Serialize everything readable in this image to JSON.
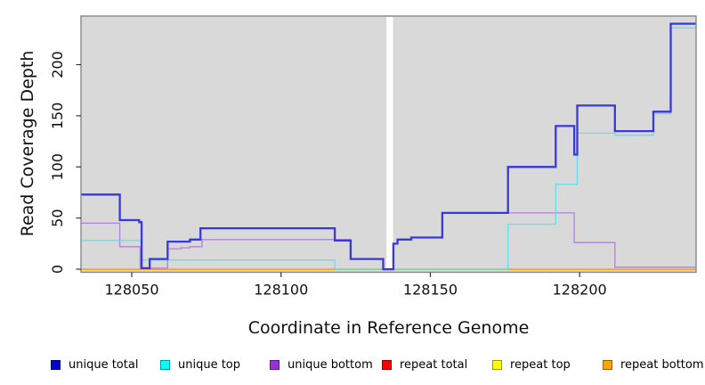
{
  "chart_data": {
    "type": "line",
    "subtype": "step-after-coverage",
    "title": "",
    "xlabel": "Coordinate in Reference Genome",
    "ylabel": "Read Coverage Depth",
    "xlim": [
      128033,
      128239
    ],
    "ylim": [
      -3,
      247.5
    ],
    "xticks": [
      128050,
      128100,
      128150,
      128200
    ],
    "yticks": [
      0,
      50,
      100,
      150,
      200
    ],
    "grid": false,
    "plot_bg": "#d9d9d9",
    "box_border": "#878787",
    "tick_color": "#333333",
    "text_color": "#111111",
    "gap_region": {
      "x_start": 128135.3,
      "x_end": 128137.5,
      "color": "#ffffff"
    },
    "series": [
      {
        "name": "repeat total",
        "color": "#e60000",
        "width": 1.3,
        "opacity": 1,
        "points": [
          [
            128033,
            0
          ],
          [
            128239,
            0
          ]
        ]
      },
      {
        "name": "repeat top",
        "color": "#ffff00",
        "width": 1.3,
        "opacity": 1,
        "points": [
          [
            128033,
            0
          ],
          [
            128239,
            0
          ]
        ]
      },
      {
        "name": "repeat bottom",
        "color": "#ffa01e",
        "width": 1.5,
        "opacity": 1,
        "points": [
          [
            128033,
            0
          ],
          [
            128239,
            0
          ]
        ]
      },
      {
        "name": "unique bottom",
        "color": "#a878d8",
        "width": 1.3,
        "opacity": 0.9,
        "points": [
          [
            128033,
            45
          ],
          [
            128046,
            22
          ],
          [
            128052.8,
            1
          ],
          [
            128062,
            20
          ],
          [
            128066.5,
            21
          ],
          [
            128069.5,
            22
          ],
          [
            128073.5,
            29
          ],
          [
            128123.3,
            10
          ],
          [
            128134.2,
            0
          ],
          [
            128137.6,
            25
          ],
          [
            128139,
            29
          ],
          [
            128143.6,
            31
          ],
          [
            128154,
            55
          ],
          [
            128198.2,
            26
          ],
          [
            128211.8,
            2
          ],
          [
            128239,
            2
          ]
        ]
      },
      {
        "name": "unique top",
        "color": "#4fe0e8",
        "width": 1.3,
        "opacity": 0.85,
        "points": [
          [
            128033,
            28
          ],
          [
            128053.3,
            9
          ],
          [
            128118,
            0
          ],
          [
            128176,
            44
          ],
          [
            128192,
            83
          ],
          [
            128199.2,
            133
          ],
          [
            128211.8,
            131
          ],
          [
            128224.7,
            152
          ],
          [
            128230.5,
            236
          ],
          [
            128239,
            236
          ]
        ]
      },
      {
        "name": "unique total",
        "color": "#3838dc",
        "width": 2.3,
        "opacity": 1,
        "points": [
          [
            128033,
            73
          ],
          [
            128046,
            48
          ],
          [
            128052.5,
            46
          ],
          [
            128053.3,
            1
          ],
          [
            128056,
            10
          ],
          [
            128062,
            27
          ],
          [
            128069.5,
            29
          ],
          [
            128073,
            40
          ],
          [
            128118,
            28
          ],
          [
            128123.3,
            10
          ],
          [
            128134.2,
            0
          ],
          [
            128137.6,
            25
          ],
          [
            128139,
            29
          ],
          [
            128143.6,
            31
          ],
          [
            128154,
            55
          ],
          [
            128176,
            100
          ],
          [
            128192,
            140
          ],
          [
            128198.2,
            112
          ],
          [
            128199.2,
            160
          ],
          [
            128211.8,
            135
          ],
          [
            128224.7,
            154
          ],
          [
            128230.5,
            240
          ],
          [
            128239,
            240
          ]
        ]
      }
    ],
    "legend_position": "bottom"
  },
  "legend": {
    "items": [
      {
        "label": "unique total",
        "fill": "#0000cd",
        "border": "#00008b"
      },
      {
        "label": "unique top",
        "fill": "#00ffff",
        "border": "#009999"
      },
      {
        "label": "unique bottom",
        "fill": "#9b30d9",
        "border": "#551a8b"
      },
      {
        "label": "repeat total",
        "fill": "#ff0000",
        "border": "#8b0000"
      },
      {
        "label": "repeat top",
        "fill": "#ffff00",
        "border": "#999900"
      },
      {
        "label": "repeat bottom",
        "fill": "#ffa500",
        "border": "#995c00"
      }
    ]
  }
}
